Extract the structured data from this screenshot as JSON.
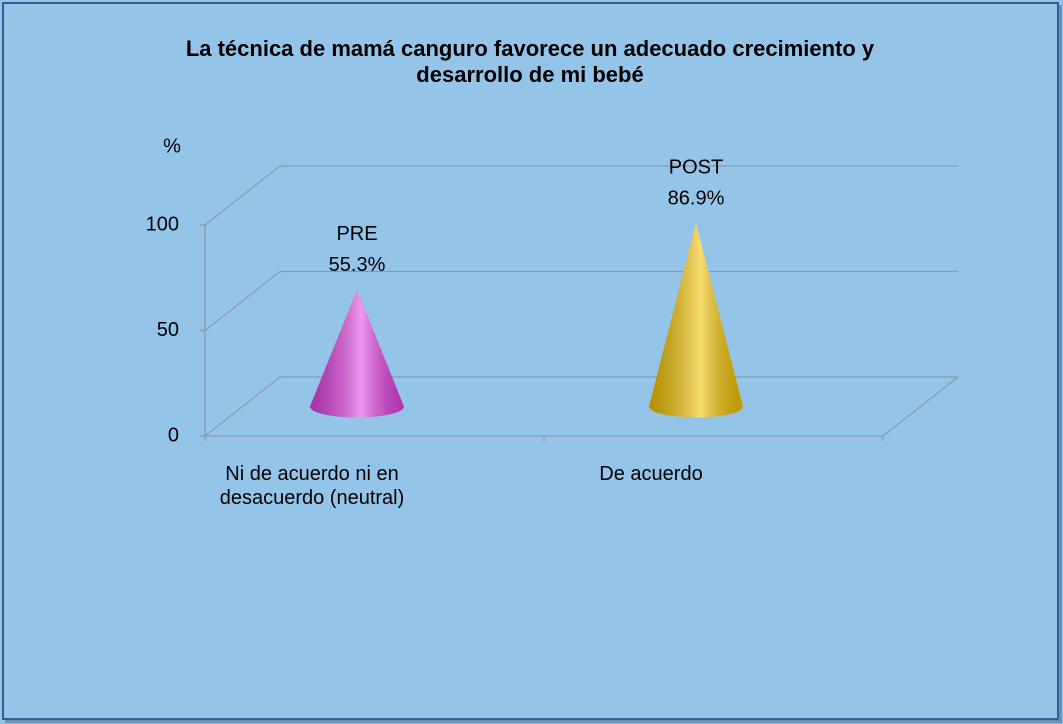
{
  "chart_data": {
    "type": "cone",
    "title": "La técnica de mamá canguro favorece un adecuado crecimiento y desarrollo de mi bebé",
    "y_label": "%",
    "categories": [
      "Ni de acuerdo ni en desacuerdo (neutral)",
      "De acuerdo"
    ],
    "series": [
      {
        "name": "PRE",
        "color": "#e040e0",
        "values": [
          55.3,
          null
        ],
        "value_labels": [
          "55.3%",
          null
        ]
      },
      {
        "name": "POST",
        "color": "#f2c200",
        "values": [
          null,
          86.9
        ],
        "value_labels": [
          null,
          "86.9%"
        ]
      }
    ],
    "ylim": [
      0,
      100
    ],
    "yticks": [
      0,
      50,
      100
    ],
    "grid": true
  }
}
